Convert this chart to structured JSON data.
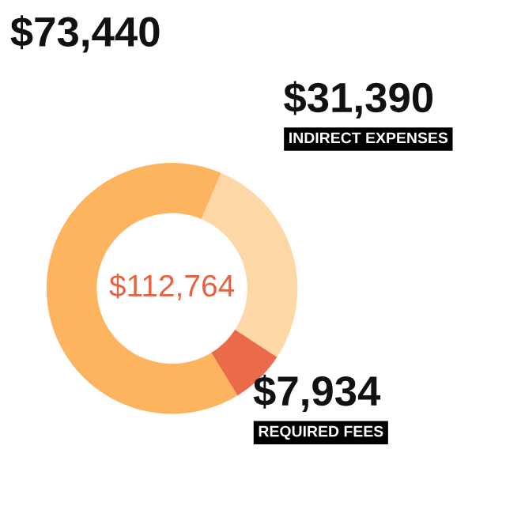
{
  "chart_data": {
    "type": "donut",
    "categories": [
      null,
      "INDIRECT EXPENSES",
      "REQUIRED FEES"
    ],
    "values": [
      73440,
      31390,
      7934
    ],
    "colors": [
      "#fdb45e",
      "#fdd8a6",
      "#ea6a4a"
    ],
    "value_labels": [
      "$73,440",
      "$31,390",
      "$7,934"
    ],
    "annotations": [
      "$112,764"
    ],
    "legend": false
  }
}
